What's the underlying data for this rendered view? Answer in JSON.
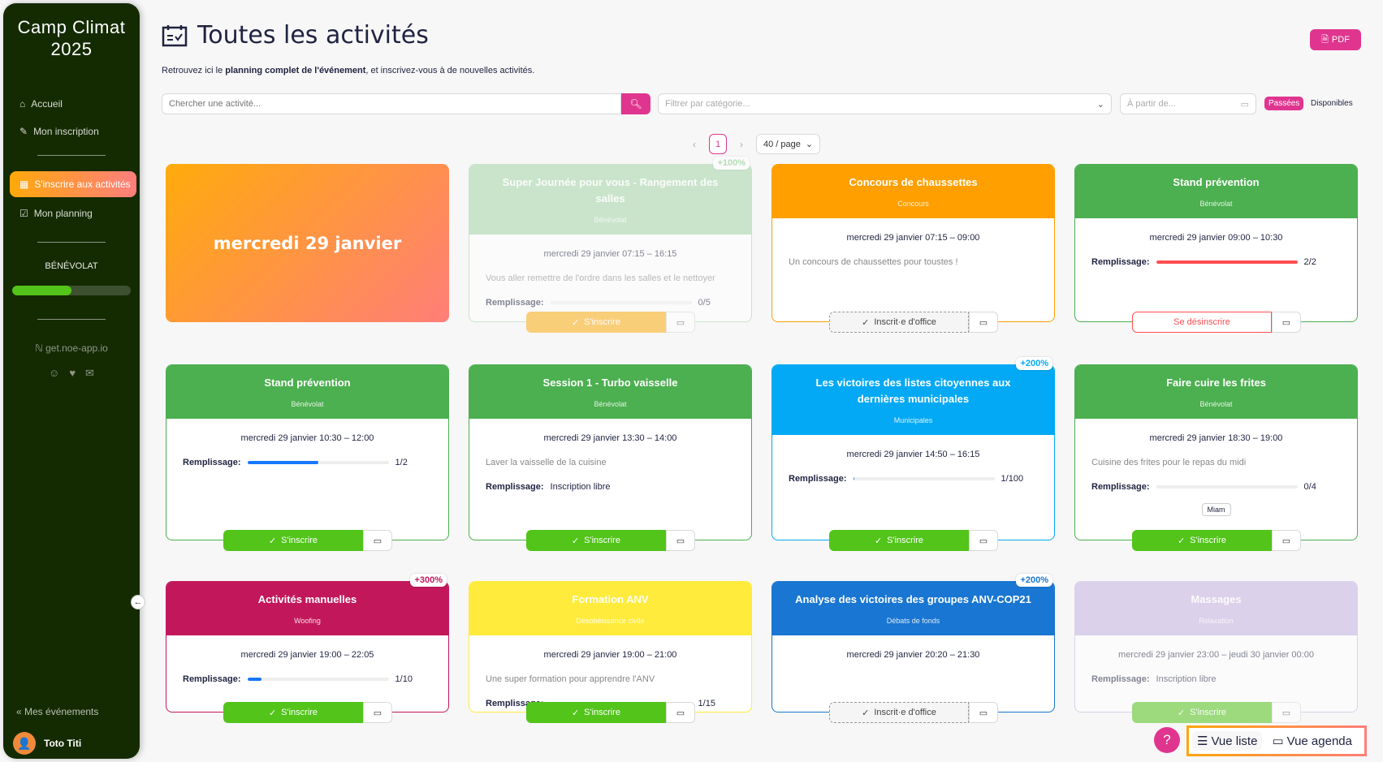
{
  "sidebar": {
    "title": "Camp Climat 2025",
    "items": [
      {
        "label": "Accueil",
        "icon": "home-icon"
      },
      {
        "label": "Mon inscription",
        "icon": "edit-icon"
      },
      {
        "label": "S'inscrire aux activités",
        "icon": "calendar-icon"
      },
      {
        "label": "Mon planning",
        "icon": "calendar-check-icon"
      }
    ],
    "role_label": "BÉNÉVOLAT",
    "role_progress": 0.5,
    "link": "get.noe-app.io",
    "events_label": "Mes événements",
    "user": "Toto Titi"
  },
  "header": {
    "title": "Toutes les activités",
    "subtitle_pre": "Retrouvez ici le ",
    "subtitle_bold": "planning complet de l'événement",
    "subtitle_post": ", et inscrivez-vous à de nouvelles activités.",
    "pdf_label": "PDF"
  },
  "filters": {
    "search_placeholder": "Chercher une activité...",
    "category_placeholder": "Filtrer par catégorie...",
    "date_placeholder": "À partir de...",
    "past_label": "Passées",
    "available_label": "Disponibles"
  },
  "pagination": {
    "current": "1",
    "page_size": "40 / page"
  },
  "day_label": "mercredi 29 janvier",
  "colors": {
    "accent": "#e0358f",
    "subscribe": "#52c41a"
  },
  "cards": [
    {
      "title": "Super Journée pour vous - Rangement des salles",
      "category": "Bénévolat",
      "color": "#a5d6a7",
      "badge": "+100%",
      "badge_color": "#81c784",
      "date": "mercredi 29 janvier 07:15 – 16:15",
      "desc": "Vous aller remettre de l'ordre dans les salles et le nettoyer",
      "fill_label": "Remplissage:",
      "fill_value": "0/5",
      "fill": 0,
      "bar_color": "#1677ff",
      "button": "S'inscrire",
      "button_type": "orange",
      "dim": true
    },
    {
      "title": "Concours de chaussettes",
      "category": "Concours",
      "color": "#ff9f00",
      "date": "mercredi 29 janvier 07:15 – 09:00",
      "desc": "Un concours de chaussettes pour toustes !",
      "button": "Inscrit·e d'office",
      "button_type": "office"
    },
    {
      "title": "Stand prévention",
      "category": "Bénévolat",
      "color": "#4caf50",
      "date": "mercredi 29 janvier 09:00 – 10:30",
      "fill_label": "Remplissage:",
      "fill_value": "2/2",
      "fill": 1,
      "bar_color": "#ff4d4f",
      "button": "Se désinscrire",
      "button_type": "unsub"
    },
    {
      "title": "Stand prévention",
      "category": "Bénévolat",
      "color": "#4caf50",
      "date": "mercredi 29 janvier 10:30 – 12:00",
      "fill_label": "Remplissage:",
      "fill_value": "1/2",
      "fill": 0.5,
      "bar_color": "#1677ff",
      "button": "S'inscrire",
      "button_type": "green"
    },
    {
      "title": "Session 1 - Turbo vaisselle",
      "category": "Bénévolat",
      "color": "#4caf50",
      "date": "mercredi 29 janvier 13:30 – 14:00",
      "desc": "Laver la vaisselle de la cuisine",
      "fill_label": "Remplissage:",
      "fill_text": "Inscription libre",
      "button": "S'inscrire",
      "button_type": "green"
    },
    {
      "title": "Les victoires des listes citoyennes aux dernières municipales",
      "category": "Municipales",
      "color": "#03a9f4",
      "badge": "+200%",
      "badge_color": "#03a9f4",
      "date": "mercredi 29 janvier 14:50 – 16:15",
      "fill_label": "Remplissage:",
      "fill_value": "1/100",
      "fill": 0.01,
      "bar_color": "#1677ff",
      "button": "S'inscrire",
      "button_type": "green"
    },
    {
      "title": "Faire cuire les frites",
      "category": "Bénévolat",
      "color": "#4caf50",
      "date": "mercredi 29 janvier 18:30 – 19:00",
      "desc": "Cuisine des frites pour le repas du midi",
      "fill_label": "Remplissage:",
      "fill_value": "0/4",
      "fill": 0,
      "bar_color": "#1677ff",
      "tag": "Miam",
      "button": "S'inscrire",
      "button_type": "green"
    },
    {
      "title": "Activités manuelles",
      "category": "Woofing",
      "color": "#c2185b",
      "badge": "+300%",
      "badge_color": "#c2185b",
      "date": "mercredi 29 janvier 19:00 – 22:05",
      "fill_label": "Remplissage:",
      "fill_value": "1/10",
      "fill": 0.1,
      "bar_color": "#1677ff",
      "button": "S'inscrire",
      "button_type": "green"
    },
    {
      "title": "Formation ANV",
      "category": "Désobéissance civile",
      "color": "#ffeb3b",
      "date": "mercredi 29 janvier 19:00 – 21:00",
      "desc": "Une super formation pour apprendre l'ANV",
      "fill_label": "Remplissage:",
      "fill_value": "1/15",
      "fill": 0.067,
      "bar_color": "#1677ff",
      "button": "S'inscrire",
      "button_type": "green"
    },
    {
      "title": "Analyse des victoires des groupes ANV-COP21",
      "category": "Débats de fonds",
      "color": "#1976d2",
      "badge": "+200%",
      "badge_color": "#1976d2",
      "date": "mercredi 29 janvier 20:20 – 21:30",
      "button": "Inscrit·e d'office",
      "button_type": "office"
    },
    {
      "title": "Massages",
      "category": "Relaxation",
      "color": "#c5b3e0",
      "date": "mercredi 29 janvier 23:00 – jeudi 30 janvier 00:00",
      "fill_label": "Remplissage:",
      "fill_text": "Inscription libre",
      "button": "S'inscrire",
      "button_type": "green",
      "dim": true
    }
  ],
  "views": {
    "list_label": "Vue liste",
    "agenda_label": "Vue agenda"
  }
}
